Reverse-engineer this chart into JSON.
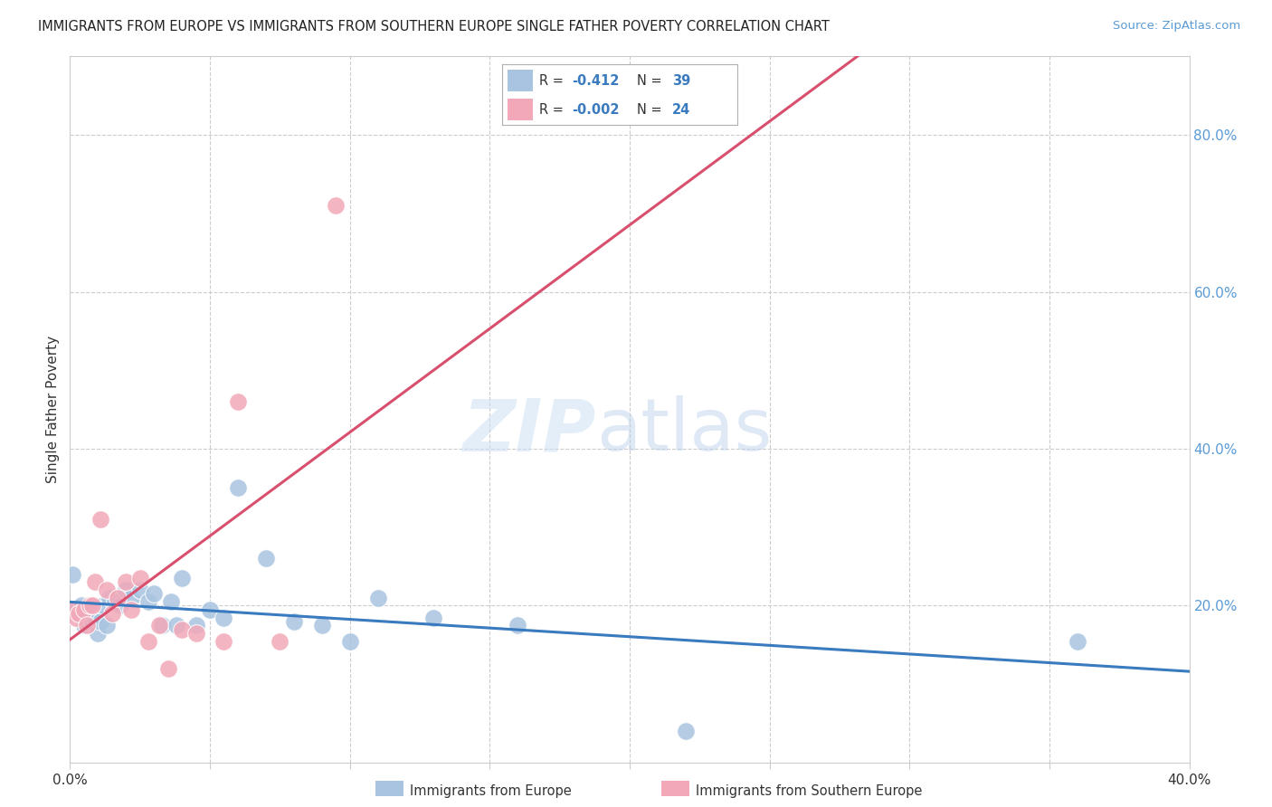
{
  "title": "IMMIGRANTS FROM EUROPE VS IMMIGRANTS FROM SOUTHERN EUROPE SINGLE FATHER POVERTY CORRELATION CHART",
  "source": "Source: ZipAtlas.com",
  "ylabel": "Single Father Poverty",
  "legend_blue_label": "Immigrants from Europe",
  "legend_pink_label": "Immigrants from Southern Europe",
  "legend_blue_r_val": "-0.412",
  "legend_blue_n": "39",
  "legend_pink_r_val": "-0.002",
  "legend_pink_n": "24",
  "blue_color": "#a8c4e0",
  "pink_color": "#f2a8b8",
  "blue_line_color": "#3a7abf",
  "pink_line_color": "#d94f6e",
  "watermark_zip": "ZIP",
  "watermark_atlas": "atlas",
  "blue_scatter_x": [
    0.001,
    0.002,
    0.003,
    0.004,
    0.005,
    0.005,
    0.006,
    0.007,
    0.008,
    0.009,
    0.01,
    0.011,
    0.012,
    0.013,
    0.014,
    0.016,
    0.018,
    0.02,
    0.022,
    0.025,
    0.028,
    0.03,
    0.033,
    0.036,
    0.038,
    0.04,
    0.045,
    0.05,
    0.055,
    0.06,
    0.07,
    0.08,
    0.09,
    0.1,
    0.11,
    0.13,
    0.16,
    0.22,
    0.36
  ],
  "blue_scatter_y": [
    0.24,
    0.195,
    0.19,
    0.2,
    0.185,
    0.175,
    0.18,
    0.19,
    0.18,
    0.185,
    0.165,
    0.18,
    0.2,
    0.175,
    0.21,
    0.205,
    0.2,
    0.22,
    0.21,
    0.22,
    0.205,
    0.215,
    0.175,
    0.205,
    0.175,
    0.235,
    0.175,
    0.195,
    0.185,
    0.35,
    0.26,
    0.18,
    0.175,
    0.155,
    0.21,
    0.185,
    0.175,
    0.04,
    0.155
  ],
  "pink_scatter_x": [
    0.001,
    0.002,
    0.003,
    0.005,
    0.006,
    0.007,
    0.008,
    0.009,
    0.011,
    0.013,
    0.015,
    0.017,
    0.02,
    0.022,
    0.025,
    0.028,
    0.032,
    0.035,
    0.04,
    0.045,
    0.055,
    0.06,
    0.075,
    0.095
  ],
  "pink_scatter_y": [
    0.195,
    0.185,
    0.19,
    0.195,
    0.175,
    0.2,
    0.2,
    0.23,
    0.31,
    0.22,
    0.19,
    0.21,
    0.23,
    0.195,
    0.235,
    0.155,
    0.175,
    0.12,
    0.17,
    0.165,
    0.155,
    0.46,
    0.155,
    0.71
  ],
  "xlim": [
    0.0,
    0.4
  ],
  "ylim": [
    0.0,
    0.9
  ],
  "yticks": [
    0.2,
    0.4,
    0.6,
    0.8
  ],
  "ytick_labels": [
    "20.0%",
    "40.0%",
    "60.0%",
    "80.0%"
  ],
  "xtick_positions": [
    0.0,
    0.05,
    0.1,
    0.15,
    0.2,
    0.25,
    0.3,
    0.35,
    0.4
  ],
  "xtick_labels": [
    "0.0%",
    "",
    "",
    "",
    "",
    "",
    "",
    "",
    "40.0%"
  ],
  "grid_color": "#cccccc",
  "spine_color": "#cccccc",
  "right_tick_color": "#5b9bd5",
  "title_color": "#222222",
  "source_color": "#5b9bd5"
}
